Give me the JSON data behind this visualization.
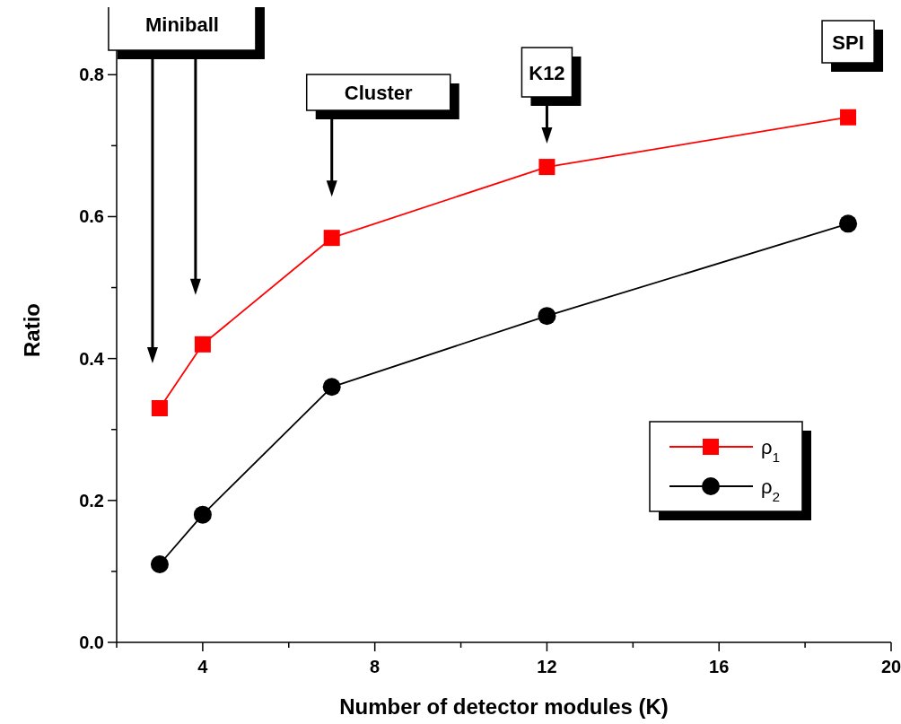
{
  "chart_data": {
    "type": "line",
    "xlabel": "Number of detector modules (K)",
    "ylabel": "Ratio",
    "x": [
      3,
      4,
      7,
      12,
      19
    ],
    "series": [
      {
        "name": "ρ$_{1}$",
        "color": "#ff0000",
        "marker": "square",
        "values": [
          0.33,
          0.42,
          0.57,
          0.67,
          0.74
        ]
      },
      {
        "name": "ρ$_{2}$",
        "color": "#000000",
        "marker": "circle",
        "values": [
          0.11,
          0.18,
          0.36,
          0.46,
          0.59
        ]
      }
    ],
    "xlim": [
      2,
      20
    ],
    "xticks": [
      {
        "value": 2,
        "label": null
      },
      {
        "value": 4,
        "label": "4"
      },
      {
        "value": 6,
        "label": null
      },
      {
        "value": 8,
        "label": "8"
      },
      {
        "value": 10,
        "label": null
      },
      {
        "value": 12,
        "label": "12"
      },
      {
        "value": 14,
        "label": null
      },
      {
        "value": 16,
        "label": "16"
      },
      {
        "value": 18,
        "label": null
      },
      {
        "value": 20,
        "label": "20"
      }
    ],
    "ylim": [
      0,
      0.88
    ],
    "yticks": [
      {
        "value": 0,
        "label": "0.0"
      },
      {
        "value": 0.1,
        "label": null
      },
      {
        "value": 0.2,
        "label": "0.2"
      },
      {
        "value": 0.3,
        "label": null
      },
      {
        "value": 0.4,
        "label": "0.4"
      },
      {
        "value": 0.5,
        "label": null
      },
      {
        "value": 0.6,
        "label": "0.6"
      },
      {
        "value": 0.7,
        "label": null
      },
      {
        "value": 0.8,
        "label": "0.8"
      }
    ],
    "annotations": [
      "Miniball",
      "Cluster",
      "K12",
      "SPI"
    ],
    "legend": "right",
    "grid": false
  }
}
